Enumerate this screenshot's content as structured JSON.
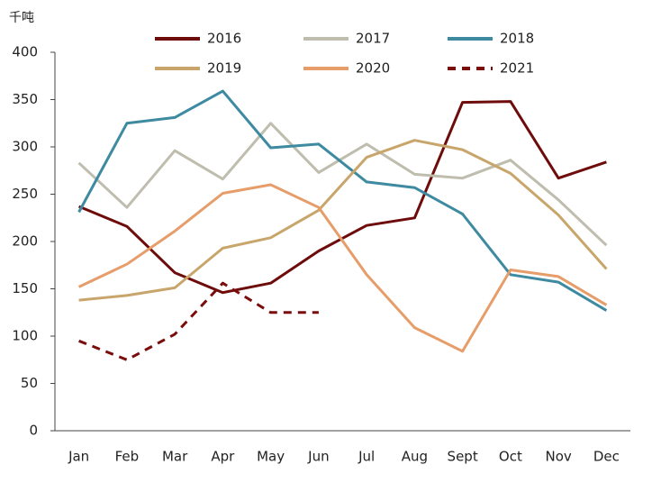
{
  "chart_data": {
    "type": "line",
    "y_unit_label": "千吨",
    "categories": [
      "Jan",
      "Feb",
      "Mar",
      "Apr",
      "May",
      "Jun",
      "Jul",
      "Aug",
      "Sept",
      "Oct",
      "Nov",
      "Dec"
    ],
    "series": [
      {
        "name": "2016",
        "color": "#6e0b0b",
        "line_style": "solid",
        "values": [
          237,
          216,
          167,
          146,
          156,
          190,
          217,
          225,
          347,
          348,
          267,
          284
        ]
      },
      {
        "name": "2017",
        "color": "#bfbdad",
        "line_style": "solid",
        "values": [
          283,
          236,
          296,
          266,
          325,
          273,
          303,
          271,
          267,
          286,
          244,
          196
        ]
      },
      {
        "name": "2018",
        "color": "#3d8aa1",
        "line_style": "solid",
        "values": [
          231,
          325,
          331,
          359,
          299,
          303,
          263,
          257,
          229,
          165,
          157,
          127
        ]
      },
      {
        "name": "2019",
        "color": "#c8a66b",
        "line_style": "solid",
        "values": [
          138,
          143,
          151,
          193,
          204,
          233,
          289,
          307,
          297,
          272,
          228,
          171
        ]
      },
      {
        "name": "2020",
        "color": "#e69d6a",
        "line_style": "solid",
        "values": [
          152,
          176,
          211,
          251,
          260,
          236,
          165,
          109,
          84,
          170,
          163,
          133
        ]
      },
      {
        "name": "2021",
        "color": "#7a0c0c",
        "line_style": "dashed",
        "values": [
          95,
          75,
          102,
          156,
          125,
          125,
          null,
          null,
          null,
          null,
          null,
          null
        ]
      }
    ],
    "ylim": [
      0,
      400
    ],
    "yticks": [
      0,
      50,
      100,
      150,
      200,
      250,
      300,
      350,
      400
    ],
    "grid": false,
    "legend": "top"
  }
}
